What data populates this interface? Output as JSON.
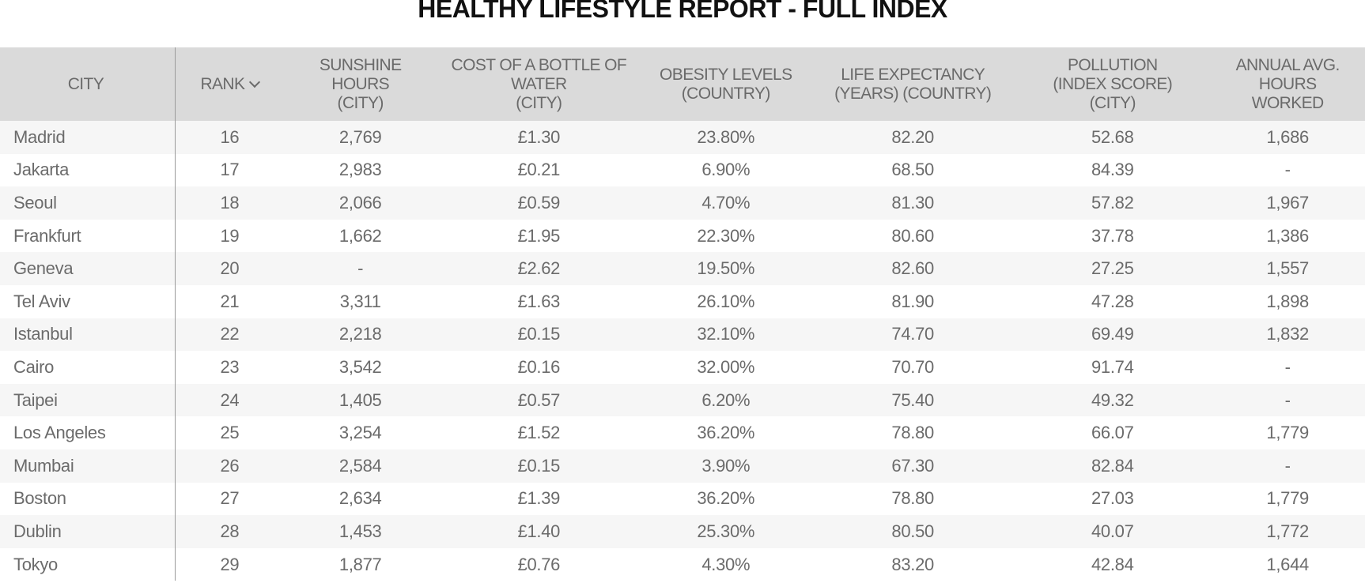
{
  "title": "HEALTHY LIFESTYLE REPORT - FULL INDEX",
  "columns": [
    {
      "lines": [
        "CITY"
      ]
    },
    {
      "lines": [
        "RANK"
      ]
    },
    {
      "lines": [
        "SUNSHINE",
        "HOURS",
        "(CITY)"
      ]
    },
    {
      "lines": [
        "COST OF A BOTTLE OF",
        "WATER",
        "(CITY)"
      ]
    },
    {
      "lines": [
        "OBESITY LEVELS",
        "(COUNTRY)"
      ]
    },
    {
      "lines": [
        "LIFE EXPECTANCY",
        "(YEARS) (COUNTRY)"
      ]
    },
    {
      "lines": [
        "POLLUTION",
        "(INDEX SCORE)",
        "(CITY)"
      ]
    },
    {
      "lines": [
        "ANNUAL AVG.",
        "HOURS",
        "WORKED"
      ]
    }
  ],
  "sort": {
    "column": "RANK",
    "direction": "descending",
    "icon": "chevron-down-icon"
  },
  "rows": [
    [
      "Madrid",
      "16",
      "2,769",
      "£1.30",
      "23.80%",
      "82.20",
      "52.68",
      "1,686"
    ],
    [
      "Jakarta",
      "17",
      "2,983",
      "£0.21",
      "6.90%",
      "68.50",
      "84.39",
      "-"
    ],
    [
      "Seoul",
      "18",
      "2,066",
      "£0.59",
      "4.70%",
      "81.30",
      "57.82",
      "1,967"
    ],
    [
      "Frankfurt",
      "19",
      "1,662",
      "£1.95",
      "22.30%",
      "80.60",
      "37.78",
      "1,386"
    ],
    [
      "Geneva",
      "20",
      "-",
      "£2.62",
      "19.50%",
      "82.60",
      "27.25",
      "1,557"
    ],
    [
      "Tel Aviv",
      "21",
      "3,311",
      "£1.63",
      "26.10%",
      "81.90",
      "47.28",
      "1,898"
    ],
    [
      "Istanbul",
      "22",
      "2,218",
      "£0.15",
      "32.10%",
      "74.70",
      "69.49",
      "1,832"
    ],
    [
      "Cairo",
      "23",
      "3,542",
      "£0.16",
      "32.00%",
      "70.70",
      "91.74",
      "-"
    ],
    [
      "Taipei",
      "24",
      "1,405",
      "£0.57",
      "6.20%",
      "75.40",
      "49.32",
      "-"
    ],
    [
      "Los Angeles",
      "25",
      "3,254",
      "£1.52",
      "36.20%",
      "78.80",
      "66.07",
      "1,779"
    ],
    [
      "Mumbai",
      "26",
      "2,584",
      "£0.15",
      "3.90%",
      "67.30",
      "82.84",
      "-"
    ],
    [
      "Boston",
      "27",
      "2,634",
      "£1.39",
      "36.20%",
      "78.80",
      "27.03",
      "1,779"
    ],
    [
      "Dublin",
      "28",
      "1,453",
      "£1.40",
      "25.30%",
      "80.50",
      "40.07",
      "1,772"
    ],
    [
      "Tokyo",
      "29",
      "1,877",
      "£0.76",
      "4.30%",
      "83.20",
      "42.84",
      "1,644"
    ]
  ],
  "colors": {
    "header_bg": "#dadada",
    "row_alt_bg": "#f6f6f6",
    "text": "#6b6b6b",
    "title": "#111111"
  }
}
